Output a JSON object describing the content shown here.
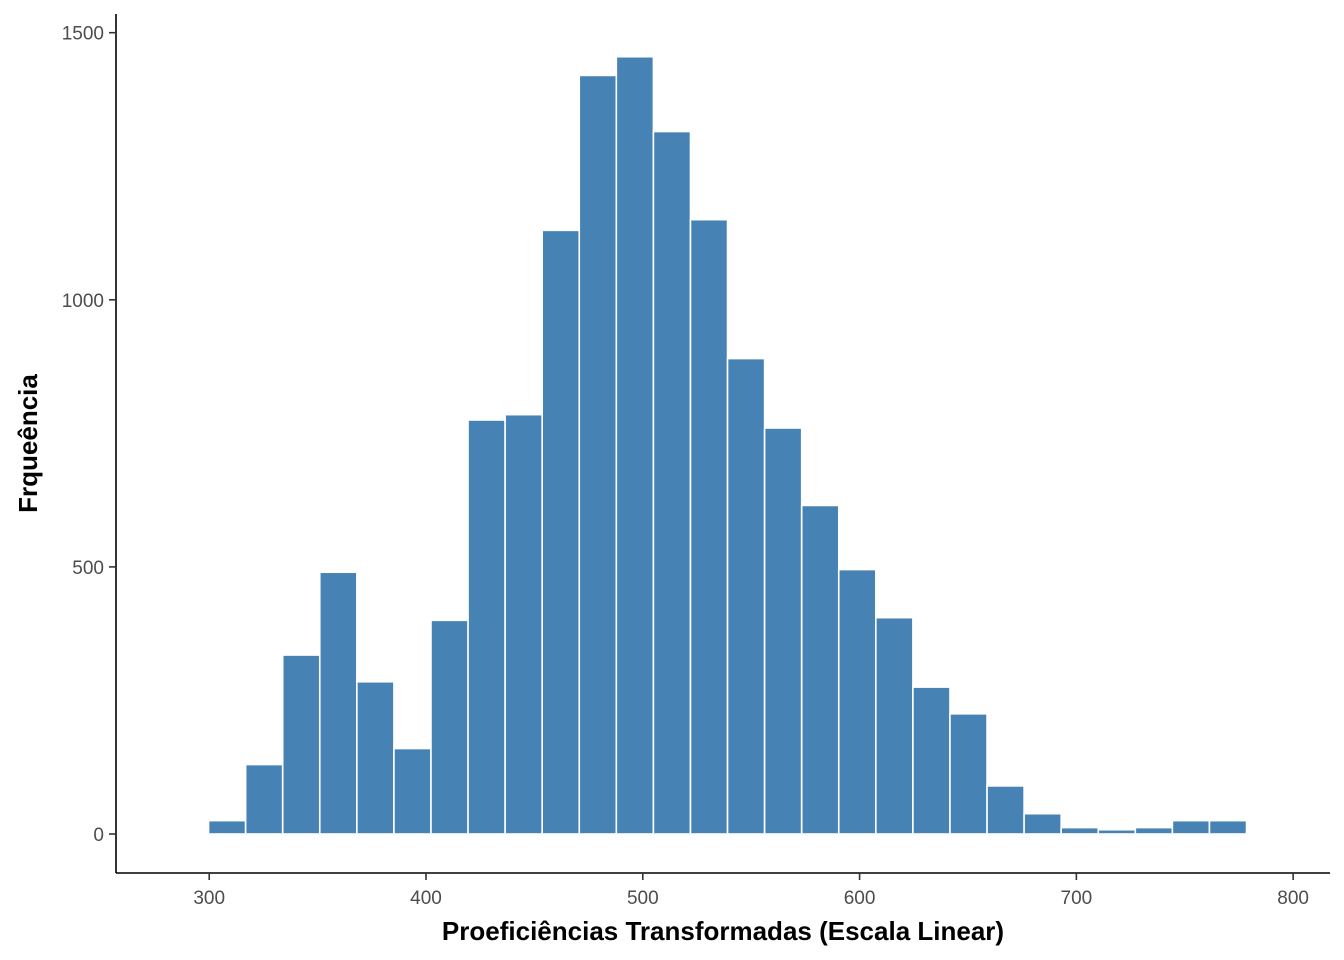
{
  "chart_data": {
    "type": "bar",
    "subtype": "histogram",
    "xlabel": "Proeficiências Transformadas (Escala Linear)",
    "ylabel": "Frqueência",
    "xlim": [
      257,
      817
    ],
    "ylim": [
      -73,
      1535
    ],
    "bin_width": 17.1,
    "bin_start": 299.7,
    "xticks": [
      300,
      400,
      500,
      600,
      700,
      800
    ],
    "yticks": [
      0,
      500,
      1000,
      1500
    ],
    "values": [
      25,
      130,
      335,
      490,
      285,
      160,
      400,
      775,
      785,
      1130,
      1420,
      1455,
      1315,
      1150,
      890,
      760,
      615,
      495,
      405,
      275,
      225,
      90,
      38,
      12,
      8,
      12,
      25,
      25,
      3
    ],
    "bar_color": "#4682B4",
    "bar_edge_color": "#FFFFFF",
    "grid": false,
    "legend": "none"
  }
}
